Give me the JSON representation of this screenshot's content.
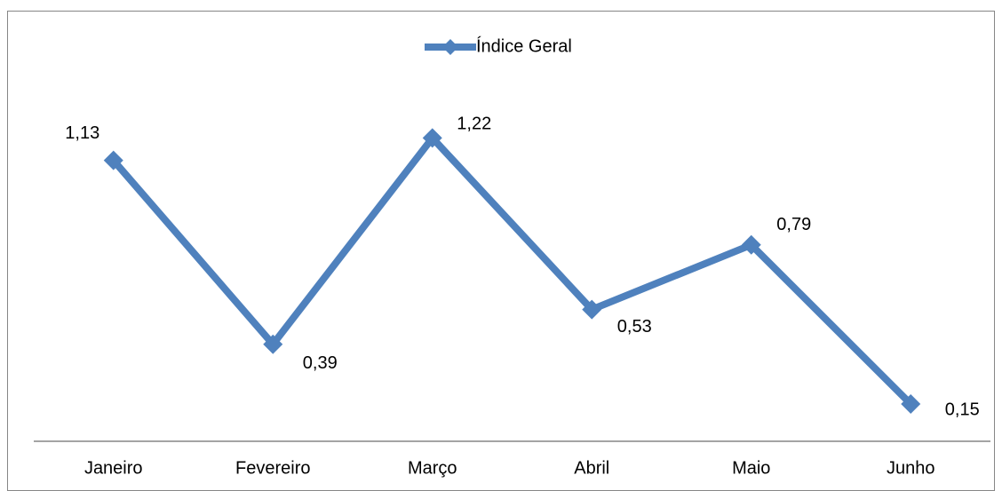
{
  "chart_data": {
    "type": "line",
    "categories": [
      "Janeiro",
      "Fevereiro",
      "Março",
      "Abril",
      "Maio",
      "Junho"
    ],
    "series": [
      {
        "name": "Índice Geral",
        "color": "#4f81bd",
        "values": [
          1.13,
          0.39,
          1.22,
          0.53,
          0.79,
          0.15
        ],
        "value_labels": [
          "1,13",
          "0,39",
          "1,22",
          "0,53",
          "0,79",
          "0,15"
        ]
      }
    ],
    "ylim": [
      0,
      1.4
    ],
    "legend": "top"
  }
}
